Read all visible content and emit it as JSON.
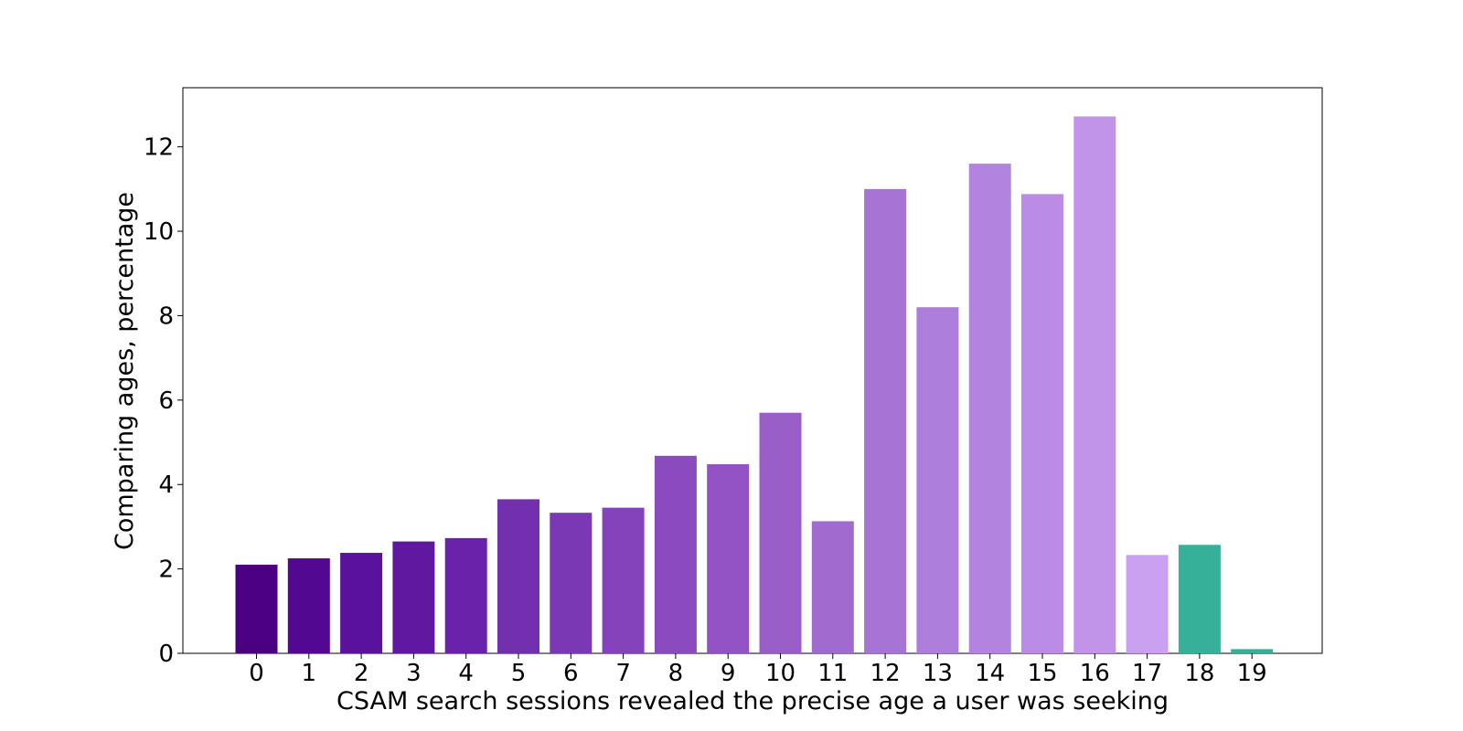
{
  "chart_data": {
    "type": "bar",
    "xlabel": "CSAM search sessions revealed the precise age a user was seeking",
    "ylabel": "Comparing ages, percentage",
    "categories": [
      "0",
      "1",
      "2",
      "3",
      "4",
      "5",
      "6",
      "7",
      "8",
      "9",
      "10",
      "11",
      "12",
      "13",
      "14",
      "15",
      "16",
      "17",
      "18",
      "19"
    ],
    "values": [
      2.1,
      2.25,
      2.38,
      2.65,
      2.73,
      3.65,
      3.33,
      3.45,
      4.68,
      4.48,
      5.7,
      3.13,
      11.0,
      8.2,
      11.6,
      10.88,
      12.72,
      2.33,
      2.57,
      0.1
    ],
    "colors": [
      "#4b0082",
      "#520890",
      "#5a119b",
      "#6018a0",
      "#6a22aa",
      "#7230af",
      "#7a38b5",
      "#8442bb",
      "#8a4bbf",
      "#9153c4",
      "#9a5ec9",
      "#a06acf",
      "#a674d5",
      "#ac7ddb",
      "#b283df",
      "#bb8ce5",
      "#c294e9",
      "#caa0f0",
      "#36b098",
      "#36b098"
    ],
    "yticks": [
      0,
      2,
      4,
      6,
      8,
      10,
      12
    ],
    "ylim": [
      0,
      13.4
    ],
    "grid": false
  }
}
